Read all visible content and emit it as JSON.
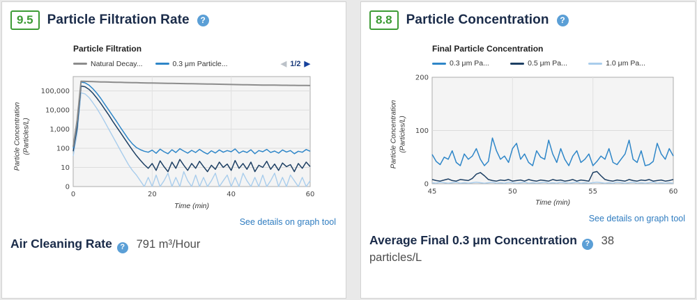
{
  "theme": {
    "page_bg": "#e9e9e9",
    "card_bg": "#ffffff",
    "score_green": "#3d9b35",
    "heading_navy": "#1a2b49",
    "link_blue": "#2f7cc0",
    "help_blue": "#5b9fd6",
    "pager_blue": "#16419c"
  },
  "icons": {
    "help": "?",
    "prev": "◀",
    "next": "▶"
  },
  "left_panel": {
    "score": "9.5",
    "title": "Particle Filtration Rate",
    "link": "See details on graph tool",
    "metric_label": "Air Cleaning Rate",
    "metric_value": "791 m³/Hour"
  },
  "right_panel": {
    "score": "8.8",
    "title": "Particle Concentration",
    "link": "See details on graph tool",
    "metric_label": "Average Final 0.3 μm Concentration",
    "metric_value": "38",
    "metric_unit": "particles/L"
  },
  "chart_data": [
    {
      "type": "line",
      "title": "Particle Filtration",
      "xlabel": "Time (min)",
      "ylabel": "Particle Concentration (Particles/L)",
      "ylabel_lines": [
        "Particle Concentration",
        "(Particles/L)"
      ],
      "y_scale": "log",
      "y_gridline_values": [
        100000,
        10000,
        1000,
        100,
        10,
        1
      ],
      "y_tick_labels": [
        "100,000",
        "10,000",
        "1,000",
        "100",
        "10",
        "0"
      ],
      "x_ticks": [
        0,
        20,
        40,
        60
      ],
      "xlim": [
        0,
        60
      ],
      "x_start": 0,
      "x_step": 1,
      "legend_page": "1/2",
      "legend": [
        {
          "label": "Natural Decay...",
          "color": "#8c8c8c"
        },
        {
          "label": "0.3 μm Particle...",
          "color": "#2e86c8"
        }
      ],
      "series": [
        {
          "name": "1.0 μm Particle",
          "color": "#a9cdec",
          "width": 1.4,
          "values": [
            40,
            600,
            80000,
            70000,
            45000,
            24000,
            12000,
            5500,
            2400,
            1000,
            420,
            180,
            75,
            32,
            14,
            7,
            4,
            2,
            1,
            3,
            1,
            4,
            1,
            2,
            5,
            1,
            3,
            1,
            6,
            2,
            1,
            4,
            1,
            3,
            1,
            2,
            5,
            1,
            2,
            4,
            1,
            3,
            1,
            5,
            2,
            1,
            3,
            1,
            4,
            1,
            2,
            5,
            1,
            3,
            1,
            4,
            2,
            1,
            3,
            1,
            2
          ]
        },
        {
          "name": "0.5 μm Particle",
          "color": "#1d3f63",
          "width": 1.5,
          "values": [
            70,
            1200,
            180000,
            165000,
            120000,
            75000,
            42000,
            22000,
            11000,
            5500,
            2600,
            1300,
            650,
            320,
            160,
            80,
            42,
            24,
            14,
            9,
            16,
            7,
            22,
            11,
            6,
            19,
            9,
            26,
            13,
            7,
            16,
            9,
            21,
            11,
            6,
            13,
            8,
            19,
            10,
            15,
            7,
            23,
            9,
            16,
            8,
            19,
            6,
            13,
            10,
            21,
            8,
            15,
            7,
            17,
            11,
            14,
            6,
            16,
            9,
            19,
            11
          ]
        },
        {
          "name": "0.3 μm Particle",
          "color": "#2e86c8",
          "width": 1.5,
          "values": [
            100,
            2000,
            290000,
            265000,
            200000,
            130000,
            75000,
            40000,
            20000,
            10000,
            5000,
            2500,
            1200,
            600,
            300,
            170,
            110,
            85,
            70,
            62,
            80,
            55,
            90,
            66,
            52,
            84,
            60,
            95,
            72,
            56,
            78,
            60,
            88,
            64,
            50,
            74,
            57,
            82,
            62,
            76,
            66,
            92,
            56,
            72,
            60,
            84,
            52,
            76,
            66,
            88,
            60,
            72,
            56,
            82,
            64,
            76,
            52,
            70,
            62,
            86,
            70
          ]
        },
        {
          "name": "Natural Decay",
          "color": "#8c8c8c",
          "width": 2,
          "values": [
            120,
            3000,
            320000,
            315000,
            310000,
            305000,
            300000,
            296000,
            292000,
            289000,
            286000,
            283000,
            280000,
            277000,
            274000,
            271000,
            268000,
            265000,
            262000,
            259000,
            257000,
            255000,
            253000,
            251000,
            249000,
            247000,
            245000,
            243000,
            241000,
            239000,
            237000,
            235000,
            233000,
            231000,
            229000,
            227000,
            225000,
            223000,
            221000,
            219000,
            217000,
            215000,
            213000,
            211000,
            209000,
            207000,
            205000,
            204000,
            203000,
            202000,
            201000,
            200000,
            199000,
            198000,
            197000,
            196000,
            195000,
            194000,
            193000,
            192000,
            191000
          ]
        }
      ]
    },
    {
      "type": "line",
      "title": "Final Particle Concentration",
      "xlabel": "Time (min)",
      "ylabel": "Particle Concentration (Particles/L)",
      "ylabel_lines": [
        "Particle Concentration",
        "(Particles/L)"
      ],
      "y_scale": "linear",
      "ylim": [
        0,
        200
      ],
      "y_ticks": [
        0,
        100,
        200
      ],
      "x_ticks": [
        45,
        50,
        55,
        60
      ],
      "xlim": [
        45,
        60
      ],
      "x_start": 45,
      "x_step": 0.25,
      "legend": [
        {
          "label": "0.3 μm Pa...",
          "color": "#2e86c8"
        },
        {
          "label": "0.5 μm Pa...",
          "color": "#1d3f63"
        },
        {
          "label": "1.0 μm Pa...",
          "color": "#a9cdec"
        }
      ],
      "series": [
        {
          "name": "1.0 μm Particle",
          "color": "#a9cdec",
          "width": 1.4,
          "values": [
            2,
            1,
            3,
            2,
            1,
            2,
            3,
            1,
            2,
            1,
            2,
            3,
            2,
            1,
            2,
            3,
            1,
            2,
            1,
            3,
            2,
            1,
            2,
            3,
            1,
            2,
            1,
            2,
            3,
            1,
            2,
            1,
            3,
            2,
            1,
            2,
            3,
            1,
            2,
            1,
            2,
            3,
            2,
            1,
            2,
            1,
            3,
            2,
            1,
            2,
            3,
            1,
            2,
            1,
            2,
            3,
            1,
            2,
            1,
            2,
            1
          ]
        },
        {
          "name": "0.5 μm Particle",
          "color": "#1d3f63",
          "width": 1.5,
          "values": [
            8,
            6,
            5,
            7,
            9,
            6,
            5,
            8,
            7,
            6,
            10,
            18,
            21,
            15,
            8,
            6,
            5,
            7,
            6,
            8,
            5,
            6,
            7,
            5,
            8,
            6,
            5,
            7,
            6,
            5,
            8,
            6,
            7,
            5,
            6,
            8,
            5,
            7,
            6,
            5,
            21,
            23,
            15,
            8,
            6,
            5,
            7,
            6,
            5,
            8,
            6,
            5,
            7,
            6,
            8,
            5,
            6,
            7,
            5,
            6,
            8
          ]
        },
        {
          "name": "0.3 μm Particle",
          "color": "#2e86c8",
          "width": 1.5,
          "values": [
            55,
            42,
            36,
            50,
            46,
            62,
            40,
            34,
            56,
            46,
            52,
            66,
            46,
            34,
            42,
            86,
            62,
            46,
            52,
            40,
            66,
            76,
            46,
            56,
            40,
            34,
            62,
            50,
            46,
            82,
            56,
            40,
            66,
            46,
            34,
            52,
            62,
            40,
            46,
            56,
            34,
            42,
            52,
            46,
            66,
            40,
            36,
            46,
            56,
            82,
            46,
            40,
            62,
            34,
            36,
            42,
            76,
            56,
            46,
            66,
            52
          ]
        }
      ]
    }
  ]
}
